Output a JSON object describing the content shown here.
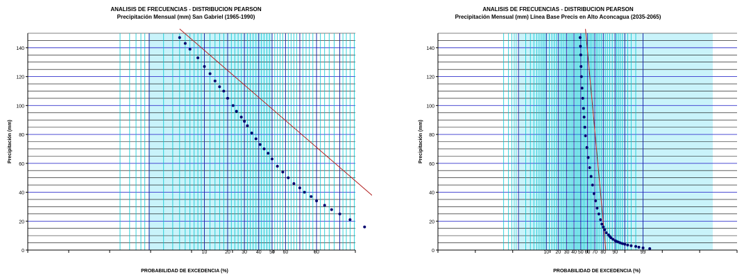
{
  "colors": {
    "hgrid_major": "#3333cc",
    "hgrid_minor": "#000000",
    "vgrid_major": "#1a1aa6",
    "vgrid_fine": "#00c8d2",
    "fill": "#c9f3fa",
    "points": "#00006e",
    "fit_line": "#b22222"
  },
  "chart_data": [
    {
      "type": "scatter",
      "title": "ANALISIS DE FRECUENCIAS - DISTRIBUCION PEARSON",
      "subtitle": "Precipitación Mensual (mm) San Gabriel (1965-1990)",
      "xlabel": "PROBABILIDAD DE EXCEDENCIA (%)",
      "ylabel": "Precipitación (mm)",
      "x_scale": "normal-probability (descending)",
      "ylim": [
        0,
        150
      ],
      "y_ticks": [
        0,
        20,
        40,
        60,
        80,
        100,
        120,
        140
      ],
      "x_tick_labels": [
        "99",
        "80",
        "60",
        "50",
        "40",
        "30",
        "20",
        "10"
      ],
      "x_tick_positions": [
        99,
        80,
        60,
        50,
        40,
        30,
        20,
        10
      ],
      "series": [
        {
          "points": [
            [
              99.8,
              0.5
            ],
            [
              99.5,
              3
            ],
            [
              99,
              7
            ],
            [
              98,
              11
            ],
            [
              96,
              16
            ],
            [
              93,
              21
            ],
            [
              90,
              25
            ],
            [
              87,
              28
            ],
            [
              84,
              31
            ],
            [
              80,
              34
            ],
            [
              77,
              37
            ],
            [
              73,
              40
            ],
            [
              70,
              43
            ],
            [
              66,
              46
            ],
            [
              62,
              50
            ],
            [
              58,
              54
            ],
            [
              54,
              58
            ],
            [
              50,
              63
            ],
            [
              47,
              67
            ],
            [
              44,
              70
            ],
            [
              41,
              73
            ],
            [
              38,
              77
            ],
            [
              35,
              81
            ],
            [
              32,
              86
            ],
            [
              30,
              89
            ],
            [
              28,
              92
            ],
            [
              25,
              96
            ],
            [
              23,
              100
            ],
            [
              20,
              105
            ],
            [
              18,
              110
            ],
            [
              16,
              113
            ],
            [
              14,
              117
            ],
            [
              12,
              122
            ],
            [
              10,
              127
            ],
            [
              8,
              133
            ],
            [
              6,
              139
            ],
            [
              5,
              143
            ],
            [
              4,
              147
            ]
          ]
        }
      ],
      "fit": [
        [
          99.9,
          0
        ],
        [
          4,
          153
        ]
      ]
    },
    {
      "type": "scatter",
      "title": "ANALISIS DE FRECUENCIAS - DISTRIBUCION PEARSON",
      "subtitle": "Precipitación Mensual (mm) Línea Base Precis en Alto Aconcagua (2035-2065)",
      "xlabel": "PROBABILIDAD DE EXCEDENCIA (%)",
      "ylabel": "Precipitación (mm)",
      "x_scale": "normal-probability (descending)",
      "ylim": [
        0,
        150
      ],
      "y_ticks": [
        0,
        20,
        40,
        60,
        80,
        100,
        120,
        140
      ],
      "x_tick_labels": [
        "99",
        "90",
        "80",
        "70",
        "60",
        "50",
        "40",
        "30",
        "20",
        "10"
      ],
      "x_tick_positions": [
        99,
        90,
        80,
        70,
        60,
        50,
        40,
        30,
        20,
        10
      ],
      "series": [
        {
          "points": [
            [
              99.5,
              1
            ],
            [
              99,
              1.5
            ],
            [
              98.5,
              2
            ],
            [
              98,
              2.5
            ],
            [
              97,
              3
            ],
            [
              96,
              3.5
            ],
            [
              95,
              4
            ],
            [
              94,
              4.5
            ],
            [
              93,
              5
            ],
            [
              92,
              5.5
            ],
            [
              91,
              6
            ],
            [
              90,
              6.5
            ],
            [
              88.5,
              7.5
            ],
            [
              87,
              8.5
            ],
            [
              86,
              9.5
            ],
            [
              85,
              10.5
            ],
            [
              83,
              12
            ],
            [
              81.5,
              14
            ],
            [
              80,
              16
            ],
            [
              78.5,
              18
            ],
            [
              77,
              21
            ],
            [
              75,
              25
            ],
            [
              73,
              29
            ],
            [
              71,
              34
            ],
            [
              69,
              39
            ],
            [
              67,
              45
            ],
            [
              65,
              51
            ],
            [
              63,
              57
            ],
            [
              61,
              64
            ],
            [
              59,
              71
            ],
            [
              57,
              79
            ],
            [
              56,
              85
            ],
            [
              55,
              92
            ],
            [
              54,
              98
            ],
            [
              53,
              105
            ],
            [
              52,
              112
            ],
            [
              51,
              120
            ],
            [
              50.5,
              127
            ],
            [
              50,
              135
            ],
            [
              49.5,
              141
            ],
            [
              49,
              147
            ]
          ]
        }
      ],
      "fit": [
        [
          82.5,
          0
        ],
        [
          57,
          153
        ]
      ]
    }
  ]
}
